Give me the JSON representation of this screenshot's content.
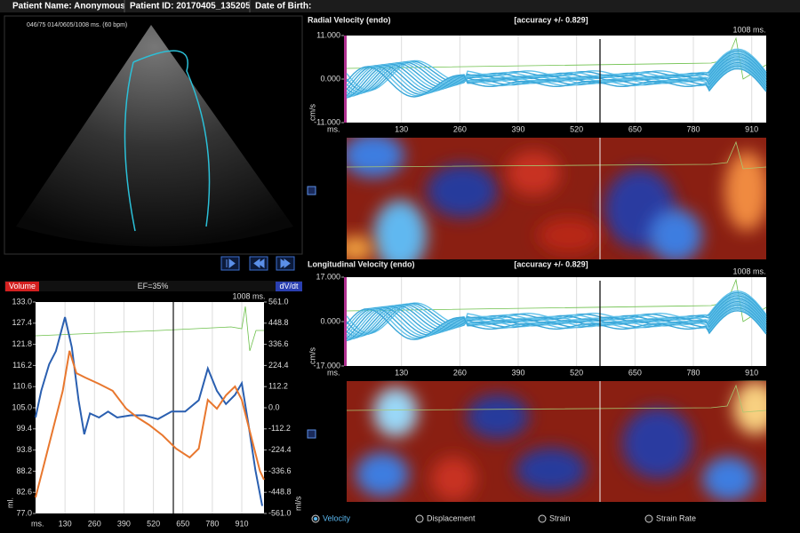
{
  "header": {
    "patient_name": "Patient Name: Anonymous",
    "patient_id": "Patient ID: 20170405_135205",
    "date_of_birth": "Date of Birth:"
  },
  "echo": {
    "info": "046/75  014/0605/1008 ms.  (60 bpm)"
  },
  "volume_chart": {
    "type": "line",
    "title": "EF=35%",
    "marker_label": "1008 ms.",
    "y_label": "ml.",
    "y2_label": "ml/s",
    "x_label": "ms.",
    "xlim": [
      0,
      1008
    ],
    "xticks": [
      130,
      260,
      390,
      520,
      650,
      780,
      910
    ],
    "ylim": [
      77,
      133
    ],
    "yticks": [
      {
        "value": 133,
        "label": "133.0"
      },
      {
        "value": 127.4,
        "label": "127.4"
      },
      {
        "value": 121.8,
        "label": "121.8"
      },
      {
        "value": 116.2,
        "label": "116.2"
      },
      {
        "value": 110.6,
        "label": "110.6"
      },
      {
        "value": 105,
        "label": "105.0"
      },
      {
        "value": 99.4,
        "label": "99.4"
      },
      {
        "value": 93.8,
        "label": "93.8"
      },
      {
        "value": 88.2,
        "label": "88.2"
      },
      {
        "value": 82.6,
        "label": "82.6"
      },
      {
        "value": 77,
        "label": "77.0"
      }
    ],
    "y2lim": [
      -561,
      561
    ],
    "y2ticks": [
      {
        "value": 561,
        "label": "561.0"
      },
      {
        "value": 448.8,
        "label": "448.8"
      },
      {
        "value": 336.6,
        "label": "336.6"
      },
      {
        "value": 224.4,
        "label": "224.4"
      },
      {
        "value": 112.2,
        "label": "112.2"
      },
      {
        "value": 0,
        "label": "0.0"
      },
      {
        "value": -112.2,
        "label": "-112.2"
      },
      {
        "value": -224.4,
        "label": "-224.4"
      },
      {
        "value": -336.6,
        "label": "-336.6"
      },
      {
        "value": -448.8,
        "label": "-448.8"
      },
      {
        "value": -561,
        "label": "-561.0"
      }
    ],
    "series": [
      {
        "name": "Volume",
        "color": "#2a5fb0",
        "x": [
          0,
          25,
          60,
          90,
          130,
          160,
          190,
          215,
          240,
          280,
          320,
          360,
          420,
          480,
          540,
          600,
          660,
          720,
          760,
          800,
          840,
          880,
          910,
          940,
          970,
          1000
        ],
        "values": [
          102.4,
          109.5,
          116.5,
          120,
          129,
          121,
          107,
          98,
          103.5,
          102.4,
          104,
          102.4,
          103,
          103,
          102,
          104,
          104,
          107,
          115.4,
          109.5,
          106,
          108.4,
          111.5,
          100.3,
          88.5,
          79
        ]
      },
      {
        "name": "dV/dt",
        "color": "#e8772e",
        "axis": "y2",
        "x": [
          0,
          40,
          80,
          120,
          150,
          180,
          220,
          280,
          340,
          400,
          450,
          500,
          560,
          620,
          680,
          720,
          760,
          800,
          840,
          880,
          910,
          950,
          990,
          1008
        ],
        "values": [
          -476,
          -288,
          -99,
          90,
          302,
          184,
          160,
          127,
          90,
          -5,
          -52,
          -90,
          -146,
          -217,
          -264,
          -217,
          42,
          -5,
          66,
          113,
          42,
          -146,
          -335,
          -382
        ]
      }
    ]
  },
  "radial_velocity": {
    "title": "Radial Velocity (endo)",
    "accuracy": "[accuracy +/- 0.829]",
    "marker_label": "1008 ms.",
    "y_label": "cm/s",
    "x_label": "ms.",
    "xlim": [
      0,
      968
    ],
    "xticks": [
      130,
      260,
      390,
      520,
      650,
      780,
      910
    ],
    "ylim": [
      -11,
      11
    ],
    "yticks": [
      {
        "value": 11,
        "label": "11.000"
      },
      {
        "value": 0,
        "label": "0.000"
      },
      {
        "value": -11,
        "label": "-11.000"
      }
    ]
  },
  "longitudinal_velocity": {
    "title": "Longitudinal Velocity (endo)",
    "accuracy": "[accuracy +/- 0.829]",
    "marker_label": "1008 ms.",
    "y_label": "cm/s",
    "x_label": "ms.",
    "xlim": [
      0,
      968
    ],
    "xticks": [
      130,
      260,
      390,
      520,
      650,
      780,
      910
    ],
    "ylim": [
      -17,
      17
    ],
    "yticks": [
      {
        "value": 17,
        "label": "17.000"
      },
      {
        "value": 0,
        "label": "0.000"
      },
      {
        "value": -17,
        "label": "-17.000"
      }
    ]
  },
  "modes": [
    "Velocity",
    "Displacement",
    "Strain",
    "Strain Rate"
  ],
  "selected_mode": 0
}
